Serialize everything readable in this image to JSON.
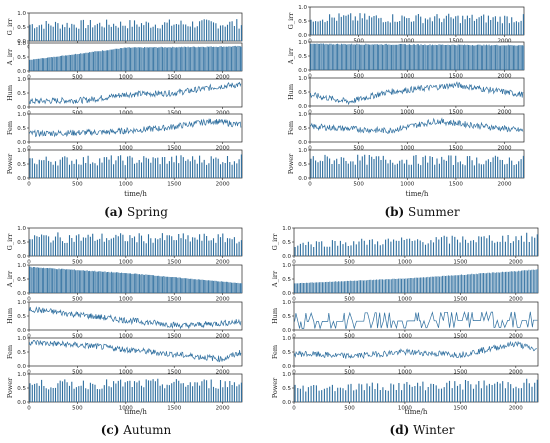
{
  "figure": {
    "captions": [
      {
        "letter": "(a)",
        "season": "Spring"
      },
      {
        "letter": "(b)",
        "season": "Summer"
      },
      {
        "letter": "(c)",
        "season": "Autumn"
      },
      {
        "letter": "(d)",
        "season": "Winter"
      }
    ]
  },
  "chart_data": [
    {
      "type": "line",
      "panel": "(a) Spring",
      "xlabel": "time/h",
      "xlim": [
        0,
        2200
      ],
      "xticks": [
        0,
        500,
        1000,
        1500,
        2000
      ],
      "subplots": [
        {
          "ylabel": "G_irr",
          "ylim": [
            0,
            1
          ],
          "yticks": [
            0.0,
            0.5,
            1.0
          ],
          "style": "daily-spikes",
          "trend": [
            [
              0,
              0.75
            ],
            [
              2200,
              0.8
            ]
          ]
        },
        {
          "ylabel": "A_irr",
          "ylim": [
            0,
            1
          ],
          "yticks": [
            0.0,
            0.5,
            1.0
          ],
          "style": "daily-envelope",
          "trend": [
            [
              0,
              0.4
            ],
            [
              1000,
              0.85
            ],
            [
              2200,
              0.9
            ]
          ]
        },
        {
          "ylabel": "Hum",
          "ylim": [
            0,
            1
          ],
          "yticks": [
            0.0,
            0.5,
            1.0
          ],
          "style": "noisy-line",
          "trend": [
            [
              0,
              0.2
            ],
            [
              600,
              0.25
            ],
            [
              1000,
              0.45
            ],
            [
              1500,
              0.5
            ],
            [
              2000,
              0.75
            ],
            [
              2200,
              0.8
            ]
          ]
        },
        {
          "ylabel": "Fem",
          "ylim": [
            0,
            1
          ],
          "yticks": [
            0.0,
            0.5,
            1.0
          ],
          "style": "noisy-line",
          "trend": [
            [
              0,
              0.3
            ],
            [
              800,
              0.35
            ],
            [
              1400,
              0.5
            ],
            [
              1900,
              0.75
            ],
            [
              2200,
              0.6
            ]
          ]
        },
        {
          "ylabel": "Power",
          "ylim": [
            0,
            1
          ],
          "yticks": [
            0.0,
            0.5,
            1.0
          ],
          "style": "daily-spikes",
          "trend": [
            [
              0,
              0.8
            ],
            [
              2200,
              0.85
            ]
          ]
        }
      ]
    },
    {
      "type": "line",
      "panel": "(b) Summer",
      "xlabel": "time/h",
      "xlim": [
        0,
        2200
      ],
      "xticks": [
        0,
        500,
        1000,
        1500,
        2000
      ],
      "subplots": [
        {
          "ylabel": "G_irr",
          "ylim": [
            0,
            1
          ],
          "yticks": [
            0.0,
            0.5,
            1.0
          ],
          "style": "daily-spikes",
          "trend": [
            [
              0,
              0.8
            ],
            [
              2200,
              0.75
            ]
          ]
        },
        {
          "ylabel": "A_irr",
          "ylim": [
            0,
            1
          ],
          "yticks": [
            0.0,
            0.5,
            1.0
          ],
          "style": "daily-envelope",
          "trend": [
            [
              0,
              0.95
            ],
            [
              2200,
              0.9
            ]
          ]
        },
        {
          "ylabel": "Hum",
          "ylim": [
            0,
            1
          ],
          "yticks": [
            0.0,
            0.5,
            1.0
          ],
          "style": "noisy-line",
          "trend": [
            [
              0,
              0.4
            ],
            [
              400,
              0.15
            ],
            [
              800,
              0.5
            ],
            [
              1500,
              0.75
            ],
            [
              2200,
              0.4
            ]
          ]
        },
        {
          "ylabel": "Fem",
          "ylim": [
            0,
            1
          ],
          "yticks": [
            0.0,
            0.5,
            1.0
          ],
          "style": "noisy-line",
          "trend": [
            [
              0,
              0.55
            ],
            [
              800,
              0.4
            ],
            [
              1300,
              0.75
            ],
            [
              2200,
              0.4
            ]
          ]
        },
        {
          "ylabel": "Power",
          "ylim": [
            0,
            1
          ],
          "yticks": [
            0.0,
            0.5,
            1.0
          ],
          "style": "daily-spikes",
          "trend": [
            [
              0,
              0.85
            ],
            [
              2200,
              0.8
            ]
          ]
        }
      ]
    },
    {
      "type": "line",
      "panel": "(c) Autumn",
      "xlabel": "time/h",
      "xlim": [
        0,
        2200
      ],
      "xticks": [
        0,
        500,
        1000,
        1500,
        2000
      ],
      "subplots": [
        {
          "ylabel": "G_irr",
          "ylim": [
            0,
            1
          ],
          "yticks": [
            0.0,
            0.5,
            1.0
          ],
          "style": "daily-spikes",
          "trend": [
            [
              0,
              0.85
            ],
            [
              2200,
              0.8
            ]
          ]
        },
        {
          "ylabel": "A_irr",
          "ylim": [
            0,
            1
          ],
          "yticks": [
            0.0,
            0.5,
            1.0
          ],
          "style": "daily-envelope",
          "trend": [
            [
              0,
              0.95
            ],
            [
              1100,
              0.7
            ],
            [
              2200,
              0.35
            ]
          ]
        },
        {
          "ylabel": "Hum",
          "ylim": [
            0,
            1
          ],
          "yticks": [
            0.0,
            0.5,
            1.0
          ],
          "style": "noisy-line",
          "trend": [
            [
              0,
              0.75
            ],
            [
              500,
              0.55
            ],
            [
              1000,
              0.35
            ],
            [
              1600,
              0.15
            ],
            [
              2200,
              0.3
            ]
          ]
        },
        {
          "ylabel": "Fem",
          "ylim": [
            0,
            1
          ],
          "yticks": [
            0.0,
            0.5,
            1.0
          ],
          "style": "noisy-line",
          "trend": [
            [
              0,
              0.85
            ],
            [
              700,
              0.7
            ],
            [
              1400,
              0.45
            ],
            [
              2000,
              0.25
            ],
            [
              2200,
              0.5
            ]
          ]
        },
        {
          "ylabel": "Power",
          "ylim": [
            0,
            1
          ],
          "yticks": [
            0.0,
            0.5,
            1.0
          ],
          "style": "daily-spikes",
          "trend": [
            [
              0,
              0.8
            ],
            [
              2200,
              0.85
            ]
          ]
        }
      ]
    },
    {
      "type": "line",
      "panel": "(d) Winter",
      "xlabel": "time/h",
      "xlim": [
        0,
        2200
      ],
      "xticks": [
        0,
        500,
        1000,
        1500,
        2000
      ],
      "subplots": [
        {
          "ylabel": "G_irr",
          "ylim": [
            0,
            1
          ],
          "yticks": [
            0.0,
            0.5,
            1.0
          ],
          "style": "daily-spikes",
          "trend": [
            [
              0,
              0.55
            ],
            [
              1100,
              0.7
            ],
            [
              2200,
              0.85
            ]
          ]
        },
        {
          "ylabel": "A_irr",
          "ylim": [
            0,
            1
          ],
          "yticks": [
            0.0,
            0.5,
            1.0
          ],
          "style": "daily-envelope",
          "trend": [
            [
              0,
              0.35
            ],
            [
              1100,
              0.55
            ],
            [
              2200,
              0.85
            ]
          ]
        },
        {
          "ylabel": "Hum",
          "ylim": [
            0,
            1
          ],
          "yticks": [
            0.0,
            0.5,
            1.0
          ],
          "style": "step-noise",
          "trend": [
            [
              0,
              0.3
            ],
            [
              2200,
              0.35
            ]
          ]
        },
        {
          "ylabel": "Fem",
          "ylim": [
            0,
            1
          ],
          "yticks": [
            0.0,
            0.5,
            1.0
          ],
          "style": "noisy-line",
          "trend": [
            [
              0,
              0.45
            ],
            [
              500,
              0.35
            ],
            [
              1000,
              0.5
            ],
            [
              1500,
              0.4
            ],
            [
              2000,
              0.8
            ],
            [
              2200,
              0.55
            ]
          ]
        },
        {
          "ylabel": "Power",
          "ylim": [
            0,
            1
          ],
          "yticks": [
            0.0,
            0.5,
            1.0
          ],
          "style": "daily-spikes",
          "trend": [
            [
              0,
              0.65
            ],
            [
              1100,
              0.75
            ],
            [
              2200,
              0.85
            ]
          ]
        }
      ]
    }
  ]
}
